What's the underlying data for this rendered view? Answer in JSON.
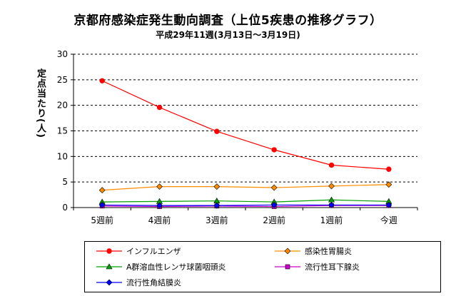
{
  "title": "京都府感染症発生動向調査（上位5疾患の推移グラフ）",
  "subtitle": "平成29年11週(3月13日～3月19日)",
  "chart_data": {
    "type": "line",
    "title": "京都府感染症発生動向調査（上位5疾患の推移グラフ）",
    "subtitle": "平成29年11週(3月13日～3月19日)",
    "xlabel": "",
    "ylabel": "定点当たり(人)",
    "categories": [
      "5週前",
      "4週前",
      "3週前",
      "2週前",
      "1週前",
      "今週"
    ],
    "ylim": [
      0,
      30
    ],
    "yticks": [
      0,
      5,
      10,
      15,
      20,
      25,
      30
    ],
    "grid": "horizontal dashed",
    "legend_position": "bottom",
    "series": [
      {
        "name": "インフルエンザ",
        "values": [
          24.8,
          19.6,
          14.9,
          11.3,
          8.3,
          7.5
        ],
        "color": "#ff0000",
        "marker": "circle"
      },
      {
        "name": "感染性胃腸炎",
        "values": [
          3.4,
          4.1,
          4.1,
          3.9,
          4.2,
          4.5
        ],
        "color": "#ff8c00",
        "marker": "diamond"
      },
      {
        "name": "A群溶血性レンサ球菌咽頭炎",
        "values": [
          1.1,
          1.2,
          1.3,
          1.1,
          1.5,
          1.2
        ],
        "color": "#00a000",
        "marker": "triangle"
      },
      {
        "name": "流行性耳下腺炎",
        "values": [
          0.3,
          0.2,
          0.3,
          0.2,
          0.4,
          0.4
        ],
        "color": "#cc00cc",
        "marker": "square"
      },
      {
        "name": "流行性角結膜炎",
        "values": [
          0.5,
          0.4,
          0.4,
          0.5,
          0.5,
          0.5
        ],
        "color": "#0000ff",
        "marker": "diamond"
      }
    ]
  }
}
